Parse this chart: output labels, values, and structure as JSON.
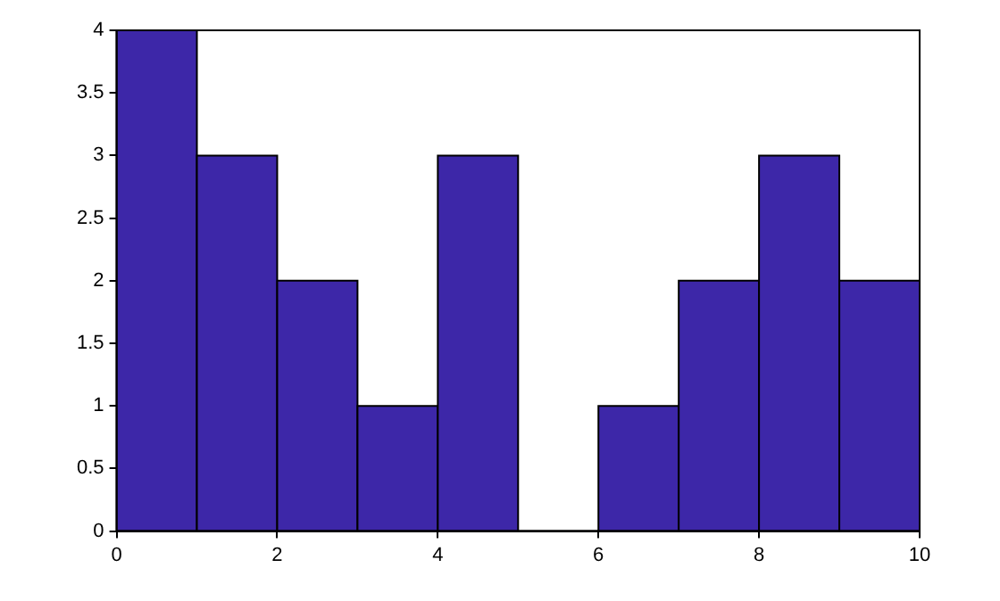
{
  "chart_data": {
    "type": "histogram",
    "bins": [
      0,
      1,
      2,
      3,
      4,
      5,
      6,
      7,
      8,
      9,
      10
    ],
    "values": [
      4,
      3,
      2,
      1,
      3,
      0,
      1,
      2,
      3,
      2
    ],
    "color": "#3d27a8",
    "xlim": [
      0,
      10
    ],
    "xticks": [
      0,
      2,
      4,
      6,
      8,
      10
    ],
    "ylim": [
      0,
      4
    ],
    "yticks": [
      0,
      0.5,
      1,
      1.5,
      2,
      2.5,
      3,
      3.5,
      4
    ],
    "grid": false,
    "legend": false
  }
}
